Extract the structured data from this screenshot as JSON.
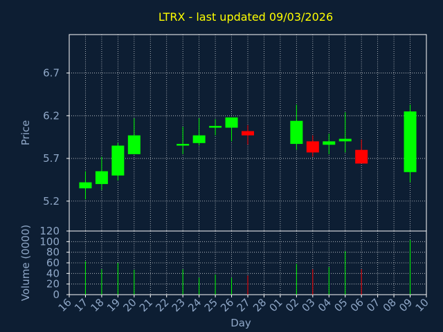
{
  "chart_data": [
    {
      "type": "candlestick",
      "title": "LTRX - last updated 09/03/2026",
      "ylabel": "Price",
      "ylim": [
        4.85,
        7.15
      ],
      "yticks": [
        5.2,
        5.7,
        6.2,
        6.7
      ],
      "grid": true,
      "colors": {
        "up": "#00ff00",
        "down": "#ff0000",
        "grid": "#ffffff",
        "frame": "#ffffff",
        "background": "#0d1e33",
        "title": "#ffff00",
        "text": "#8fa7c7"
      },
      "candles": [
        {
          "day": "17",
          "open": 5.35,
          "high": 5.55,
          "low": 5.22,
          "close": 5.42
        },
        {
          "day": "18",
          "open": 5.4,
          "high": 5.72,
          "low": 5.33,
          "close": 5.55
        },
        {
          "day": "19",
          "open": 5.5,
          "high": 5.88,
          "low": 5.44,
          "close": 5.85
        },
        {
          "day": "20",
          "open": 5.75,
          "high": 6.17,
          "low": 5.75,
          "close": 5.97
        },
        {
          "day": "23",
          "open": 5.85,
          "high": 6.07,
          "low": 5.75,
          "close": 5.87
        },
        {
          "day": "24",
          "open": 5.88,
          "high": 6.17,
          "low": 5.85,
          "close": 5.97
        },
        {
          "day": "25",
          "open": 6.06,
          "high": 6.16,
          "low": 5.97,
          "close": 6.08
        },
        {
          "day": "26",
          "open": 6.06,
          "high": 6.18,
          "low": 5.9,
          "close": 6.18
        },
        {
          "day": "27",
          "open": 6.02,
          "high": 6.09,
          "low": 5.86,
          "close": 5.97
        },
        {
          "day": "02",
          "open": 5.87,
          "high": 6.33,
          "low": 5.8,
          "close": 6.14
        },
        {
          "day": "03",
          "open": 5.9,
          "high": 5.97,
          "low": 5.72,
          "close": 5.77
        },
        {
          "day": "04",
          "open": 5.86,
          "high": 5.99,
          "low": 5.75,
          "close": 5.9
        },
        {
          "day": "05",
          "open": 5.9,
          "high": 6.24,
          "low": 5.77,
          "close": 5.93
        },
        {
          "day": "06",
          "open": 5.8,
          "high": 5.92,
          "low": 5.64,
          "close": 5.64
        },
        {
          "day": "09",
          "open": 5.54,
          "high": 6.33,
          "low": 5.42,
          "close": 6.25
        }
      ]
    },
    {
      "type": "bar",
      "ylabel": "Volume (0000)",
      "xlabel": "Day",
      "ylim": [
        0,
        120
      ],
      "yticks": [
        0,
        20,
        40,
        60,
        80,
        100,
        120
      ],
      "grid": true,
      "categories": [
        "16",
        "17",
        "18",
        "19",
        "20",
        "21",
        "22",
        "23",
        "24",
        "25",
        "26",
        "27",
        "28",
        "01",
        "02",
        "03",
        "04",
        "05",
        "06",
        "07",
        "08",
        "09",
        "10"
      ],
      "volumes": [
        {
          "day": "17",
          "value": 63,
          "dir": "up"
        },
        {
          "day": "18",
          "value": 48,
          "dir": "up"
        },
        {
          "day": "19",
          "value": 60,
          "dir": "up"
        },
        {
          "day": "20",
          "value": 47,
          "dir": "up"
        },
        {
          "day": "23",
          "value": 48,
          "dir": "up"
        },
        {
          "day": "24",
          "value": 32,
          "dir": "up"
        },
        {
          "day": "25",
          "value": 38,
          "dir": "up"
        },
        {
          "day": "26",
          "value": 32,
          "dir": "up"
        },
        {
          "day": "27",
          "value": 36,
          "dir": "down"
        },
        {
          "day": "02",
          "value": 58,
          "dir": "up"
        },
        {
          "day": "03",
          "value": 48,
          "dir": "down"
        },
        {
          "day": "04",
          "value": 52,
          "dir": "up"
        },
        {
          "day": "05",
          "value": 82,
          "dir": "up"
        },
        {
          "day": "06",
          "value": 48,
          "dir": "down"
        },
        {
          "day": "09",
          "value": 103,
          "dir": "up"
        }
      ]
    }
  ]
}
